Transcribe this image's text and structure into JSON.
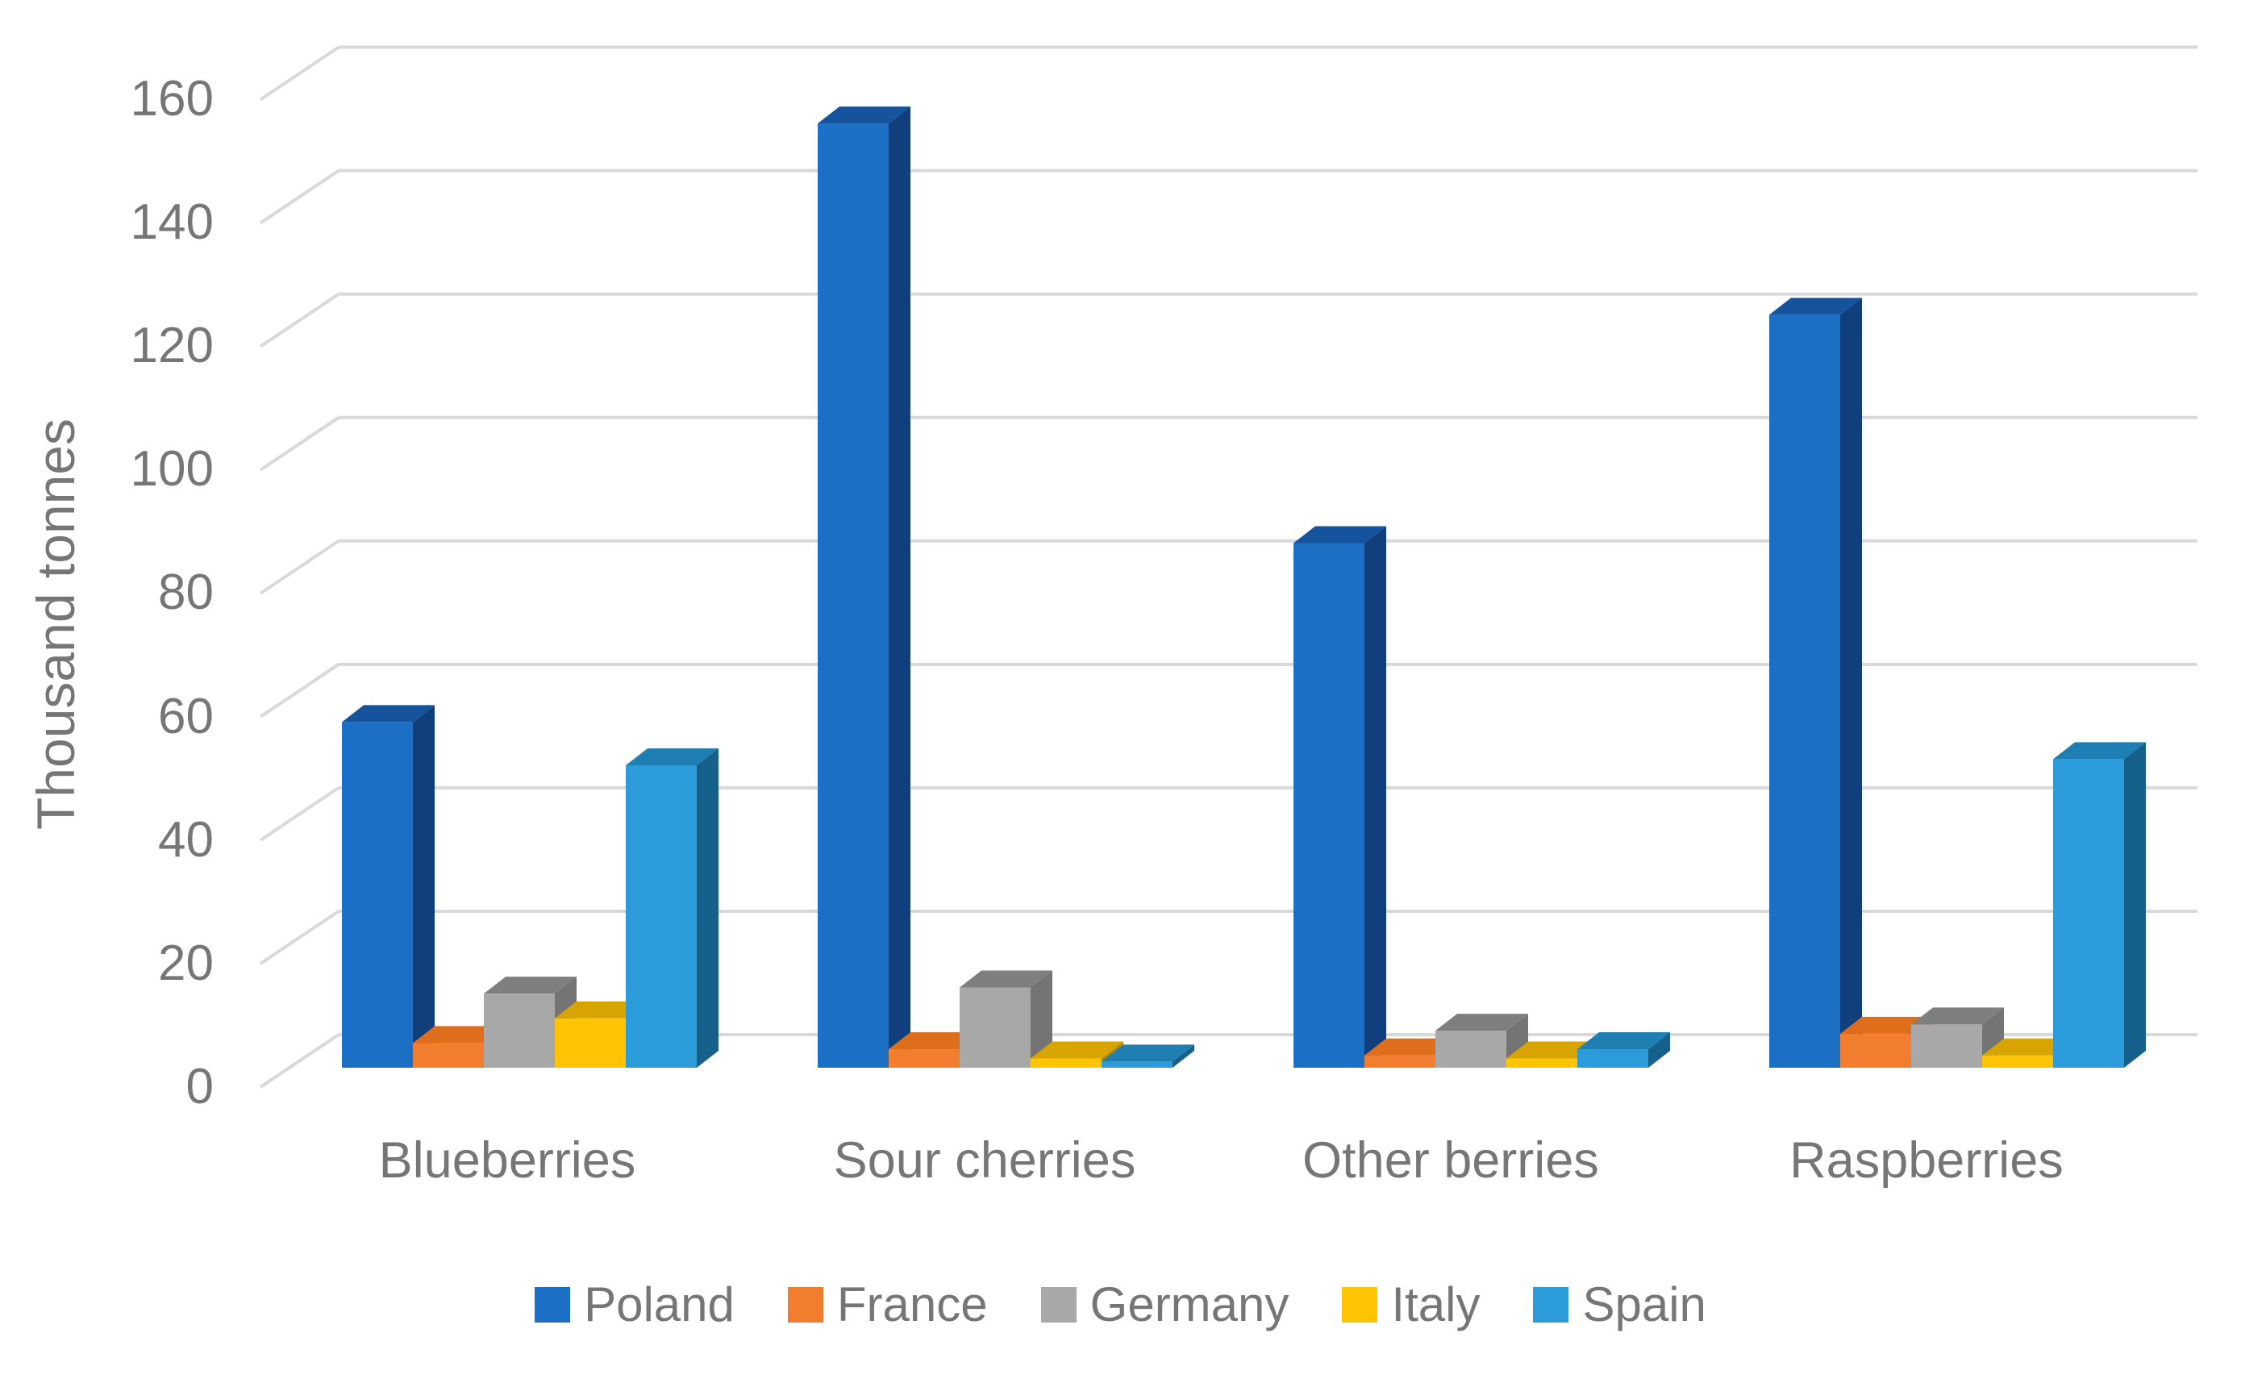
{
  "chart_data": {
    "type": "bar",
    "variant": "3d-clustered-column",
    "title": "",
    "xlabel": "",
    "ylabel": "Thousand tonnes",
    "categories": [
      "Blueberries",
      "Sour cherries",
      "Other berries",
      "Raspberries"
    ],
    "series": [
      {
        "name": "Poland",
        "color": "#1B6FC5",
        "top_color": "#15549C",
        "side_color": "#113E7D",
        "values": [
          56,
          153,
          85,
          122
        ]
      },
      {
        "name": "France",
        "color": "#F07E2E",
        "top_color": "#DF6E1C",
        "side_color": "#BF5B13",
        "values": [
          4,
          3,
          2,
          5.5
        ]
      },
      {
        "name": "Germany",
        "color": "#A8A8A8",
        "top_color": "#7F7F7F",
        "side_color": "#747474",
        "values": [
          12,
          13,
          6,
          7
        ]
      },
      {
        "name": "Italy",
        "color": "#FFC403",
        "top_color": "#D7A400",
        "side_color": "#B08600",
        "values": [
          8,
          1.5,
          1.5,
          2
        ]
      },
      {
        "name": "Spain",
        "color": "#2B9CD9",
        "top_color": "#1F7FB2",
        "side_color": "#16618C",
        "values": [
          49,
          1,
          3,
          50
        ]
      }
    ],
    "y_axis": {
      "min": 0,
      "max": 160,
      "step": 20,
      "tick_labels": [
        "0",
        "20",
        "40",
        "60",
        "80",
        "100",
        "120",
        "140",
        "160"
      ]
    },
    "grid": true,
    "gridline_color": "#D9D9D9",
    "legend_position": "bottom",
    "text_color": "#767676",
    "background_color": "#FFFFFF"
  }
}
